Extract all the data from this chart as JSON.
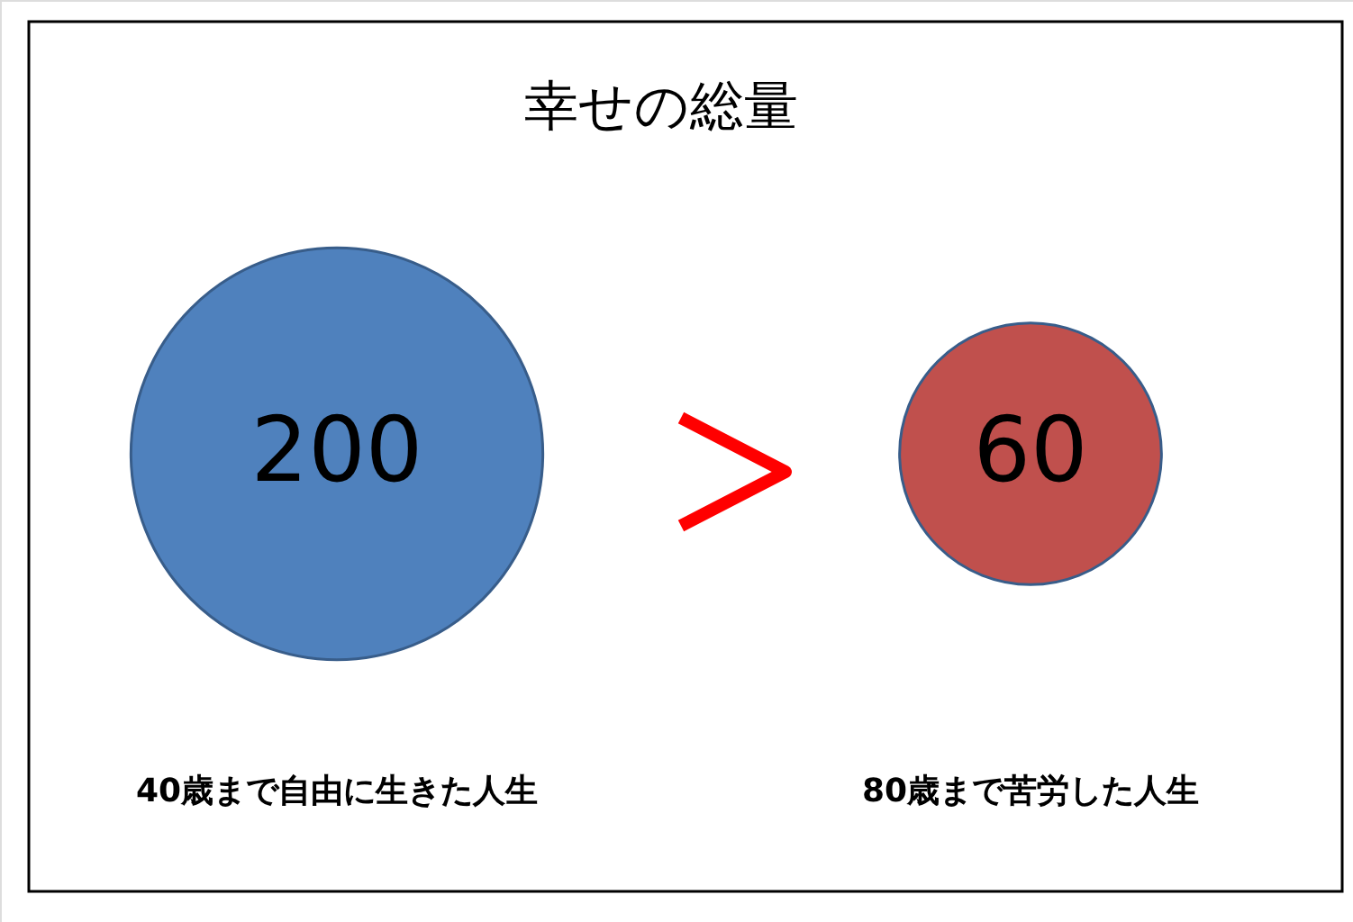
{
  "chart_data": {
    "type": "other",
    "title": "幸せの総量",
    "categories": [
      "40歳まで自由に生きた人生",
      "80歳まで苦労した人生"
    ],
    "values": [
      200,
      60
    ],
    "colors": [
      "#4f81bd",
      "#c0504d"
    ],
    "data_labels": true
  }
}
